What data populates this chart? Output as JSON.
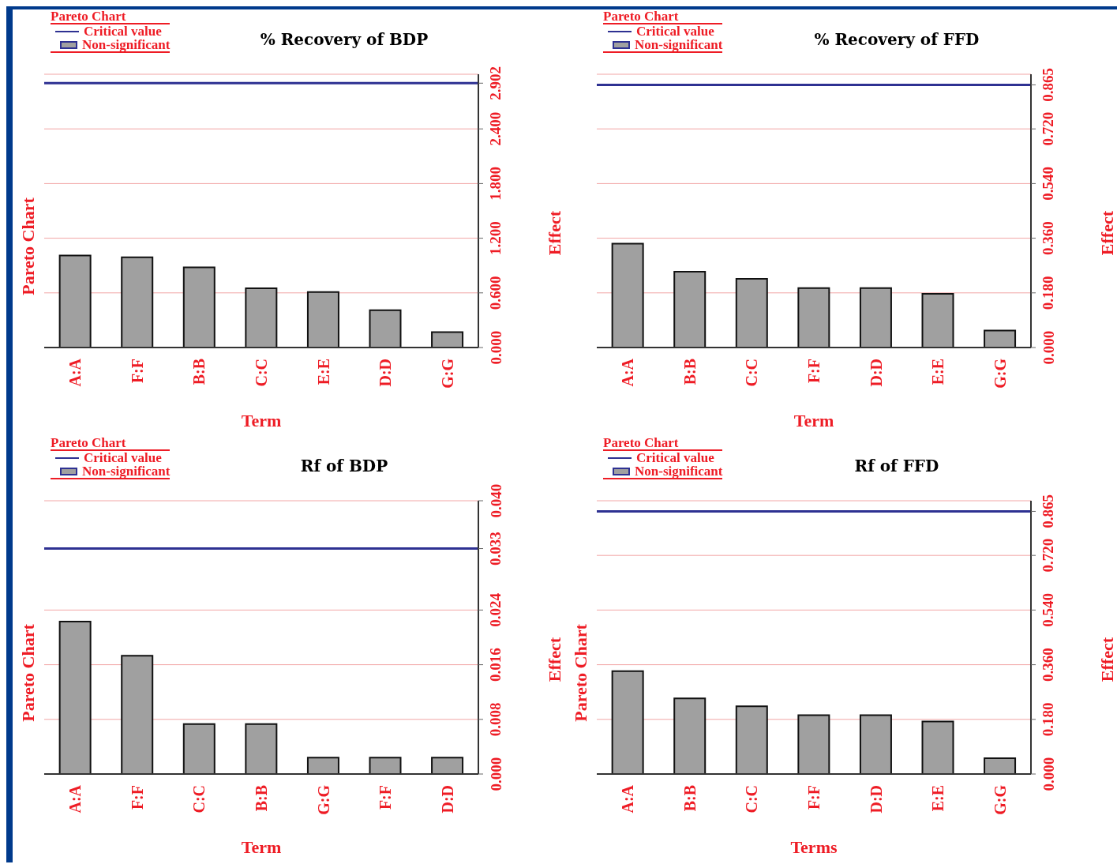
{
  "chart_data": [
    {
      "type": "bar",
      "title": "% Recovery of BDP",
      "legend_title": "Pareto Chart",
      "xlabel": "Term",
      "ylabel": "Effect",
      "annotations": [
        "Pareto Chart"
      ],
      "categories": [
        "A:A",
        "F:F",
        "B:B",
        "C:C",
        "E:E",
        "D:D",
        "G:G"
      ],
      "series": [
        {
          "name": "Non-significant",
          "color": "#a0a0a0",
          "values": [
            1.01,
            0.99,
            0.88,
            0.65,
            0.61,
            0.41,
            0.17
          ]
        }
      ],
      "ylim": [
        0,
        3.0
      ],
      "yticks": [
        {
          "value": 0,
          "label": "0.000"
        },
        {
          "value": 0.6,
          "label": "0.600"
        },
        {
          "value": 1.2,
          "label": "1.200"
        },
        {
          "value": 1.8,
          "label": "1.800"
        },
        {
          "value": 2.4,
          "label": "2.400"
        },
        2.902
      ],
      "grid": "y",
      "legend": "top left",
      "ref_lines": [
        {
          "axis": "y",
          "value": 2.902,
          "label": "Critical value",
          "color": "#2e3192"
        }
      ]
    },
    {
      "type": "bar",
      "title": "% Recovery of FFD",
      "legend_title": "Pareto Chart",
      "xlabel": "Term",
      "ylabel": "Effect",
      "categories": [
        "A:A",
        "B:B",
        "C:C",
        "F:F",
        "D:D",
        "E:E",
        "G:G"
      ],
      "series": [
        {
          "name": "Non-significant",
          "color": "#a0a0a0",
          "values": [
            0.342,
            0.25,
            0.226,
            0.196,
            0.196,
            0.177,
            0.056
          ]
        }
      ],
      "ylim": [
        0,
        0.9
      ],
      "yticks": [
        {
          "value": 0,
          "label": "0.000"
        },
        {
          "value": 0.18,
          "label": "0.180"
        },
        {
          "value": 0.36,
          "label": "0.360"
        },
        {
          "value": 0.54,
          "label": "0.540"
        },
        {
          "value": 0.72,
          "label": "0.720"
        },
        0.865
      ],
      "grid": "y",
      "legend": "top left",
      "ref_lines": [
        {
          "axis": "y",
          "value": 0.865,
          "label": "Critical value",
          "color": "#2e3192"
        }
      ]
    },
    {
      "type": "bar",
      "title": "Rf of BDP",
      "legend_title": "Pareto Chart",
      "xlabel": "Term",
      "ylabel": "Effect",
      "annotations": [
        "Pareto Chart"
      ],
      "categories": [
        "A:A",
        "F:F",
        "C:C",
        "B:B",
        "G:G",
        "F:F",
        "D:D"
      ],
      "series": [
        {
          "name": "Non-significant",
          "color": "#a0a0a0",
          "values": [
            0.0223,
            0.0173,
            0.0073,
            0.0073,
            0.0024,
            0.0024,
            0.0024
          ]
        }
      ],
      "ylim": [
        0,
        0.04
      ],
      "yticks": [
        {
          "value": 0,
          "label": "0.000"
        },
        {
          "value": 0.008,
          "label": "0.008"
        },
        {
          "value": 0.016,
          "label": "0.016"
        },
        {
          "value": 0.024,
          "label": "0.024"
        },
        0.033,
        {
          "value": 0.04,
          "label": "0.040"
        }
      ],
      "grid": "y",
      "legend": "top left",
      "ref_lines": [
        {
          "axis": "y",
          "value": 0.033,
          "label": "Critical value",
          "color": "#2e3192"
        }
      ]
    },
    {
      "type": "bar",
      "title": "Rf of FFD",
      "legend_title": "Pareto Chart",
      "xlabel": "Terms",
      "ylabel": "Effect",
      "annotations": [
        "Pareto Chart"
      ],
      "categories": [
        "A:A",
        "B:B",
        "C:C",
        "F:F",
        "D:D",
        "E:E",
        "G:G"
      ],
      "series": [
        {
          "name": "Non-significant",
          "color": "#a0a0a0",
          "values": [
            0.339,
            0.249,
            0.223,
            0.194,
            0.194,
            0.173,
            0.052
          ]
        }
      ],
      "ylim": [
        0,
        0.9
      ],
      "yticks": [
        {
          "value": 0,
          "label": "0.000"
        },
        {
          "value": 0.18,
          "label": "0.180"
        },
        {
          "value": 0.36,
          "label": "0.360"
        },
        {
          "value": 0.54,
          "label": "0.540"
        },
        {
          "value": 0.72,
          "label": "0.720"
        },
        0.865
      ],
      "grid": "y",
      "legend": "top left",
      "ref_lines": [
        {
          "axis": "y",
          "value": 0.865,
          "label": "Critical value",
          "color": "#2e3192"
        }
      ]
    }
  ]
}
